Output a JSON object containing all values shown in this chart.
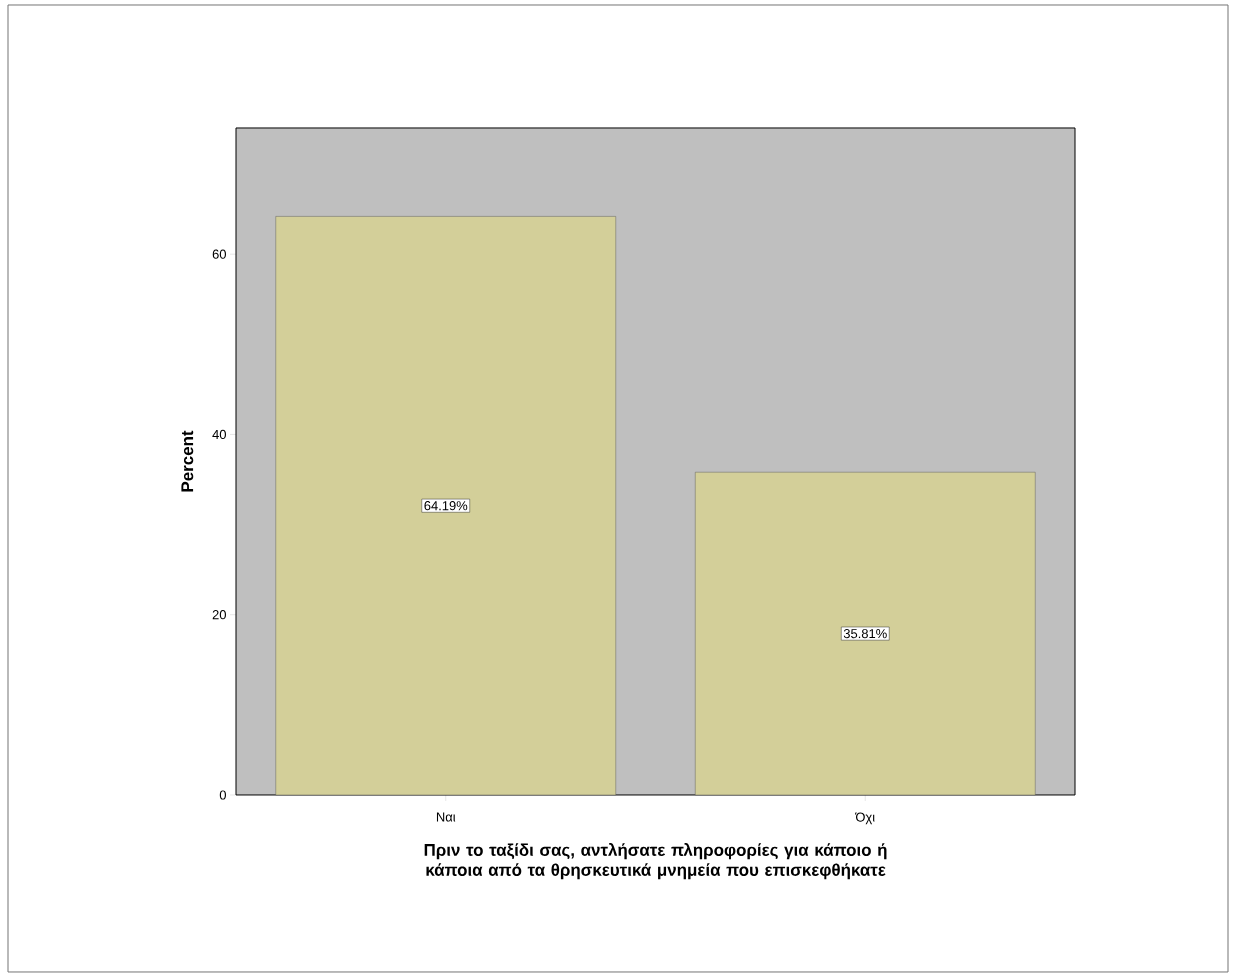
{
  "chart_data": {
    "type": "bar",
    "xlabel": "Πριν το ταξίδι σας, αντλήσατε πληροφορίες για κάποιο ή κάποια από τα θρησκευτικά μνημεία που επισκεφθήκατε",
    "ylabel": "Percent",
    "categories": [
      "Ναι",
      "Όχι"
    ],
    "values": [
      64.19,
      35.81
    ],
    "value_labels": [
      "64.19%",
      "35.81%"
    ],
    "color": "#d3cf99",
    "ylim": [
      0,
      74
    ],
    "yticks": [
      0,
      20,
      40,
      60
    ],
    "grid": false
  }
}
